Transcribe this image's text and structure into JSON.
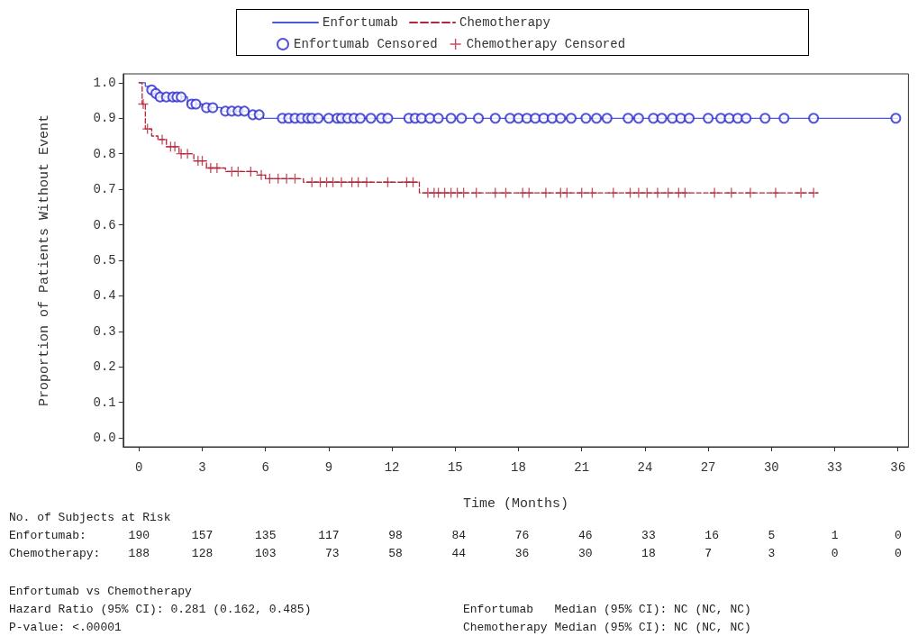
{
  "chart_data": {
    "type": "step",
    "xlabel": "Time (Months)",
    "ylabel": "Proportion of Patients Without Event",
    "xlim": [
      -0.75,
      36.5
    ],
    "xticks": [
      0,
      3,
      6,
      9,
      12,
      15,
      18,
      21,
      24,
      27,
      30,
      33,
      36
    ],
    "ylim": [
      -0.025,
      1.025
    ],
    "yticks": [
      {
        "value": 0,
        "label": "0.0"
      },
      {
        "value": 0.1,
        "label": "0.1"
      },
      {
        "value": 0.2,
        "label": "0.2"
      },
      {
        "value": 0.3,
        "label": "0.3"
      },
      {
        "value": 0.4,
        "label": "0.4"
      },
      {
        "value": 0.5,
        "label": "0.5"
      },
      {
        "value": 0.6,
        "label": "0.6"
      },
      {
        "value": 0.7,
        "label": "0.7"
      },
      {
        "value": 0.8,
        "label": "0.8"
      },
      {
        "value": 0.9,
        "label": "0.9"
      },
      {
        "value": 1,
        "label": "1.0"
      }
    ],
    "grid": false,
    "legend": "top",
    "series": [
      {
        "name": "Enfortumab",
        "type": "step",
        "color": "#4a5ad0",
        "line_style": "solid",
        "marker": "none",
        "x": [
          0,
          0.3,
          0.5,
          0.7,
          0.9,
          2.3,
          3.0,
          3.9,
          5.2,
          5.9,
          36
        ],
        "values": [
          1.0,
          0.99,
          0.98,
          0.97,
          0.96,
          0.94,
          0.93,
          0.92,
          0.91,
          0.9,
          0.9
        ]
      },
      {
        "name": "Chemotherapy",
        "type": "step",
        "color": "#b5263a",
        "line_style": "dashed",
        "marker": "none",
        "x": [
          0,
          0.15,
          0.3,
          0.6,
          0.9,
          1.3,
          1.9,
          2.6,
          3.2,
          4.1,
          5.6,
          6.0,
          7.8,
          13.3,
          32.2
        ],
        "values": [
          1.0,
          0.94,
          0.87,
          0.85,
          0.84,
          0.82,
          0.8,
          0.78,
          0.76,
          0.75,
          0.74,
          0.73,
          0.72,
          0.69,
          0.69
        ]
      },
      {
        "name": "Enfortumab Censored",
        "type": "scatter",
        "color": "#2a2ad0",
        "marker": "circle",
        "x": [
          0.6,
          0.8,
          1.0,
          1.3,
          1.6,
          1.8,
          2.0,
          2.5,
          2.7,
          3.2,
          3.5,
          4.1,
          4.4,
          4.7,
          5.0,
          5.4,
          5.7,
          6.8,
          7.1,
          7.4,
          7.7,
          8.0,
          8.2,
          8.5,
          9.0,
          9.4,
          9.6,
          9.9,
          10.2,
          10.5,
          11.0,
          11.5,
          11.8,
          12.8,
          13.1,
          13.4,
          13.8,
          14.2,
          14.8,
          15.3,
          16.1,
          16.9,
          17.6,
          18.0,
          18.4,
          18.8,
          19.2,
          19.6,
          20.0,
          20.5,
          21.2,
          21.7,
          22.2,
          23.2,
          23.7,
          24.4,
          24.8,
          25.3,
          25.7,
          26.1,
          27.0,
          27.6,
          28.0,
          28.4,
          28.8,
          29.7,
          30.6,
          32.0,
          35.9
        ],
        "values": [
          0.98,
          0.97,
          0.96,
          0.96,
          0.96,
          0.96,
          0.96,
          0.94,
          0.94,
          0.93,
          0.93,
          0.92,
          0.92,
          0.92,
          0.92,
          0.91,
          0.91,
          0.9,
          0.9,
          0.9,
          0.9,
          0.9,
          0.9,
          0.9,
          0.9,
          0.9,
          0.9,
          0.9,
          0.9,
          0.9,
          0.9,
          0.9,
          0.9,
          0.9,
          0.9,
          0.9,
          0.9,
          0.9,
          0.9,
          0.9,
          0.9,
          0.9,
          0.9,
          0.9,
          0.9,
          0.9,
          0.9,
          0.9,
          0.9,
          0.9,
          0.9,
          0.9,
          0.9,
          0.9,
          0.9,
          0.9,
          0.9,
          0.9,
          0.9,
          0.9,
          0.9,
          0.9,
          0.9,
          0.9,
          0.9,
          0.9,
          0.9,
          0.9,
          0.9
        ]
      },
      {
        "name": "Chemotherapy Censored",
        "type": "scatter",
        "color": "#b5263a",
        "marker": "cross",
        "x": [
          0.2,
          0.4,
          1.1,
          1.5,
          1.7,
          2.0,
          2.3,
          2.8,
          3.0,
          3.4,
          3.7,
          4.4,
          4.7,
          5.3,
          5.8,
          6.2,
          6.6,
          7.0,
          7.4,
          8.2,
          8.6,
          8.9,
          9.2,
          9.6,
          10.1,
          10.4,
          10.8,
          11.8,
          12.7,
          13.0,
          13.7,
          14.0,
          14.2,
          14.5,
          14.8,
          15.1,
          15.4,
          16.0,
          16.9,
          17.4,
          18.2,
          18.5,
          19.3,
          20.0,
          20.3,
          21.0,
          21.5,
          22.5,
          23.3,
          23.7,
          24.1,
          24.6,
          25.1,
          25.6,
          25.9,
          27.3,
          28.1,
          29.0,
          30.2,
          31.4,
          32.0
        ],
        "values": [
          0.94,
          0.87,
          0.84,
          0.82,
          0.82,
          0.8,
          0.8,
          0.78,
          0.78,
          0.76,
          0.76,
          0.75,
          0.75,
          0.75,
          0.74,
          0.73,
          0.73,
          0.73,
          0.73,
          0.72,
          0.72,
          0.72,
          0.72,
          0.72,
          0.72,
          0.72,
          0.72,
          0.72,
          0.72,
          0.72,
          0.69,
          0.69,
          0.69,
          0.69,
          0.69,
          0.69,
          0.69,
          0.69,
          0.69,
          0.69,
          0.69,
          0.69,
          0.69,
          0.69,
          0.69,
          0.69,
          0.69,
          0.69,
          0.69,
          0.69,
          0.69,
          0.69,
          0.69,
          0.69,
          0.69,
          0.69,
          0.69,
          0.69,
          0.69,
          0.69,
          0.69
        ]
      }
    ],
    "annotations": [
      "No. of Subjects at Risk",
      "Enfortumab:      190      157      135      117       98       84       76       46       33       16       5        1        0",
      "Chemotherapy:    188      128      103       73       58       44       36       30       18       7        3        0        0",
      "Enfortumab vs Chemotherapy",
      "Hazard Ratio (95% CI): 0.281 (0.162, 0.485)",
      "P-value: <.00001",
      "Enfortumab   Median (95% CI): NC (NC, NC)",
      "Chemotherapy Median (95% CI): NC (NC, NC)"
    ]
  }
}
